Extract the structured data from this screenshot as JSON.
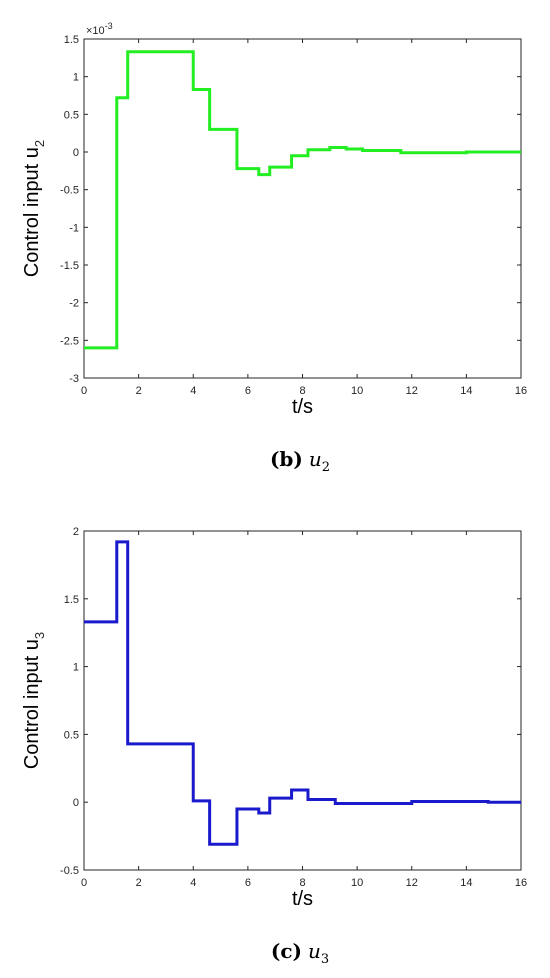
{
  "chart_data": [
    {
      "type": "line",
      "step": true,
      "title": "",
      "xlabel": "t/s",
      "ylabel": "Control input u",
      "ylabel_subscript": "2",
      "y_exponent_label": "×10",
      "y_exponent_value": "-3",
      "xlim": [
        0,
        16
      ],
      "ylim": [
        -3,
        1.5
      ],
      "xticks": [
        0,
        2,
        4,
        6,
        8,
        10,
        12,
        14,
        16
      ],
      "yticks": [
        -3,
        -2.5,
        -2,
        -1.5,
        -1,
        -0.5,
        0,
        0.5,
        1,
        1.5
      ],
      "ytick_labels": [
        "-3",
        "-2.5",
        "-2",
        "-1.5",
        "-1",
        "-0.5",
        "0",
        "0.5",
        "1",
        "1.5"
      ],
      "grid": false,
      "color": "#22ee22",
      "caption_letter": "(b)",
      "caption_var": "u",
      "caption_sub": "2",
      "series": [
        {
          "x": [
            0,
            1.2,
            1.2,
            1.6,
            1.6,
            4.0,
            4.0,
            4.6,
            4.6,
            5.6,
            5.6,
            6.4,
            6.4,
            6.8,
            6.8,
            7.6,
            7.6,
            8.2,
            8.2,
            9.0,
            9.0,
            9.6,
            9.6,
            10.2,
            10.2,
            11.6,
            11.6,
            14.0,
            14.0,
            16.0
          ],
          "y": [
            -2.6,
            -2.6,
            0.72,
            0.72,
            1.33,
            1.33,
            0.83,
            0.83,
            0.3,
            0.3,
            -0.22,
            -0.22,
            -0.3,
            -0.3,
            -0.2,
            -0.2,
            -0.05,
            -0.05,
            0.03,
            0.03,
            0.06,
            0.06,
            0.04,
            0.04,
            0.02,
            0.02,
            -0.01,
            -0.01,
            0.0,
            0.0
          ]
        }
      ]
    },
    {
      "type": "line",
      "step": true,
      "title": "",
      "xlabel": "t/s",
      "ylabel": "Control input u",
      "ylabel_subscript": "3",
      "xlim": [
        0,
        16
      ],
      "ylim": [
        -0.5,
        2
      ],
      "xticks": [
        0,
        2,
        4,
        6,
        8,
        10,
        12,
        14,
        16
      ],
      "yticks": [
        -0.5,
        0,
        0.5,
        1,
        1.5,
        2
      ],
      "ytick_labels": [
        "-0.5",
        "0",
        "0.5",
        "1",
        "1.5",
        "2"
      ],
      "grid": false,
      "color": "#1a1acc",
      "caption_letter": "(c)",
      "caption_var": "u",
      "caption_sub": "3",
      "series": [
        {
          "x": [
            0,
            1.2,
            1.2,
            1.6,
            1.6,
            4.0,
            4.0,
            4.6,
            4.6,
            5.6,
            5.6,
            6.4,
            6.4,
            6.8,
            6.8,
            7.6,
            7.6,
            8.2,
            8.2,
            9.2,
            9.2,
            10.0,
            10.0,
            12.0,
            12.0,
            12.6,
            12.6,
            14.8,
            14.8,
            16.0
          ],
          "y": [
            1.33,
            1.33,
            1.92,
            1.92,
            0.43,
            0.43,
            0.01,
            0.01,
            -0.31,
            -0.31,
            -0.05,
            -0.05,
            -0.08,
            -0.08,
            0.03,
            0.03,
            0.09,
            0.09,
            0.02,
            0.02,
            -0.01,
            -0.01,
            -0.01,
            -0.01,
            0.005,
            0.005,
            0.005,
            0.005,
            0.0,
            0.0
          ]
        }
      ]
    }
  ]
}
